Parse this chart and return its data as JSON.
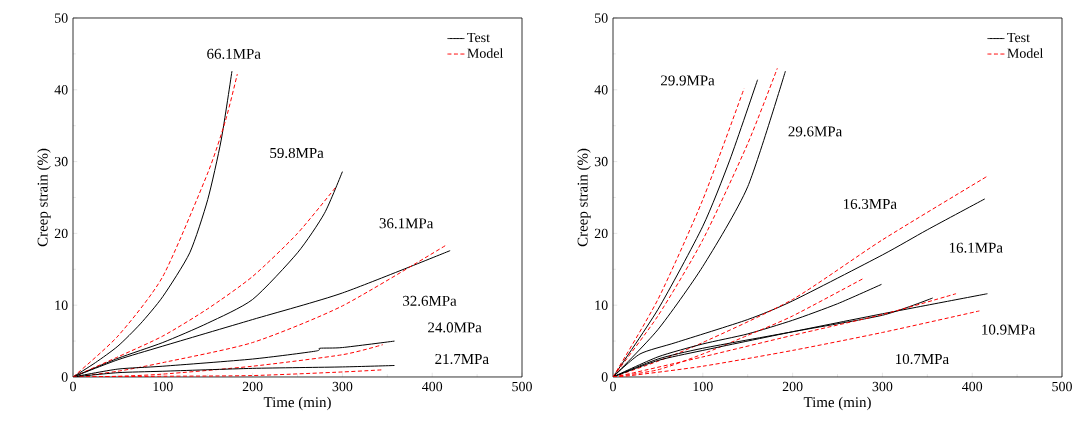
{
  "chart_data": [
    {
      "type": "line",
      "xlabel": "Time (min)",
      "ylabel": "Creep strain (%)",
      "xlim": [
        0,
        500
      ],
      "ylim": [
        0,
        50
      ],
      "xticks": [
        0,
        100,
        200,
        300,
        400,
        500
      ],
      "yticks": [
        0,
        10,
        20,
        30,
        40,
        50
      ],
      "legend": "top right",
      "series": [
        {
          "name": "Test",
          "color": "#000000",
          "line_style": "solid",
          "x": [
            0,
            25,
            50,
            75,
            100,
            130,
            150,
            165,
            177
          ],
          "values": [
            0,
            2.0,
            4.3,
            7.4,
            11.2,
            17.3,
            24.7,
            33,
            42.6
          ]
        },
        {
          "name": "Model",
          "color": "#ff0000",
          "line_style": "dashed",
          "x": [
            0,
            50,
            100,
            150,
            170,
            183
          ],
          "values": [
            0,
            5.7,
            14,
            28.4,
            35.8,
            42.2
          ]
        },
        {
          "color": "#000000",
          "line_style": "solid",
          "x": [
            0,
            50,
            100,
            150,
            200,
            250,
            280,
            300
          ],
          "values": [
            0,
            2.6,
            4.8,
            7.5,
            10.8,
            17.3,
            22.8,
            28.6
          ]
        },
        {
          "color": "#ff0000",
          "line_style": "dashed",
          "x": [
            0,
            50,
            100,
            150,
            200,
            250,
            293
          ],
          "values": [
            0,
            2.8,
            5.7,
            9.5,
            14,
            20,
            26.5
          ]
        },
        {
          "color": "#000000",
          "line_style": "solid",
          "x": [
            0,
            50,
            100,
            200,
            300,
            420
          ],
          "values": [
            0,
            2.4,
            4.3,
            8.0,
            11.7,
            17.6
          ]
        },
        {
          "color": "#ff0000",
          "line_style": "dashed",
          "x": [
            0,
            50,
            100,
            200,
            300,
            416
          ],
          "values": [
            0,
            0.8,
            2.0,
            4.8,
            9.9,
            18.4
          ]
        },
        {
          "color": "#000000",
          "line_style": "solid",
          "x": [
            0,
            50,
            100,
            200,
            270,
            275,
            300,
            358
          ],
          "values": [
            0,
            1.1,
            1.5,
            2.5,
            3.6,
            4.0,
            4.1,
            5.0
          ]
        },
        {
          "color": "#ff0000",
          "line_style": "dashed",
          "x": [
            0,
            50,
            100,
            200,
            300,
            345
          ],
          "values": [
            0,
            0.1,
            0.4,
            1.5,
            3.1,
            4.5
          ]
        },
        {
          "color": "#000000",
          "line_style": "solid",
          "x": [
            0,
            50,
            100,
            200,
            300,
            358
          ],
          "values": [
            0,
            0.6,
            0.8,
            1.2,
            1.4,
            1.6
          ]
        },
        {
          "color": "#ff0000",
          "line_style": "dashed",
          "x": [
            0,
            100,
            200,
            300,
            345
          ],
          "values": [
            0,
            0.1,
            0.2,
            0.7,
            1.0
          ]
        }
      ],
      "annotations": [
        "66.1MPa",
        "59.8MPa",
        "36.1MPa",
        "32.6MPa",
        "24.0MPa",
        "21.7MPa"
      ]
    },
    {
      "type": "line",
      "xlabel": "Time (min)",
      "ylabel": "Creep strain (%)",
      "xlim": [
        0,
        500
      ],
      "ylim": [
        0,
        50
      ],
      "xticks": [
        0,
        100,
        200,
        300,
        400,
        500
      ],
      "yticks": [
        0,
        10,
        20,
        30,
        40,
        50
      ],
      "legend": "top right",
      "series": [
        {
          "name": "Test",
          "color": "#000000",
          "line_style": "solid",
          "x": [
            0,
            50,
            100,
            130,
            161
          ],
          "values": [
            0,
            9.4,
            21,
            30.2,
            41.4
          ]
        },
        {
          "name": "Model",
          "color": "#ff0000",
          "line_style": "dashed",
          "x": [
            0,
            50,
            100,
            146
          ],
          "values": [
            0,
            10.8,
            24.7,
            40.2
          ]
        },
        {
          "color": "#000000",
          "line_style": "solid",
          "x": [
            0,
            50,
            100,
            150,
            192
          ],
          "values": [
            0,
            6.6,
            15.4,
            26.5,
            42.6
          ]
        },
        {
          "color": "#ff0000",
          "line_style": "dashed",
          "x": [
            0,
            50,
            100,
            150,
            183
          ],
          "values": [
            0,
            8.5,
            19.1,
            32.5,
            43
          ]
        },
        {
          "color": "#000000",
          "line_style": "solid",
          "x": [
            0,
            30,
            70,
            150,
            200,
            300,
            350,
            414
          ],
          "values": [
            0,
            3.2,
            4.8,
            8.0,
            10.6,
            17,
            20.5,
            24.8
          ]
        },
        {
          "color": "#ff0000",
          "line_style": "dashed",
          "x": [
            0,
            50,
            100,
            200,
            300,
            416
          ],
          "values": [
            0,
            2.2,
            4.8,
            10.8,
            19.1,
            27.9
          ]
        },
        {
          "color": "#000000",
          "line_style": "solid",
          "x": [
            0,
            50,
            100,
            150,
            200,
            250,
            299
          ],
          "values": [
            0,
            2.8,
            4.6,
            6.0,
            7.9,
            10.2,
            12.9
          ]
        },
        {
          "color": "#ff0000",
          "line_style": "dashed",
          "x": [
            0,
            50,
            100,
            150,
            200,
            280
          ],
          "values": [
            0,
            1.0,
            3.2,
            5.8,
            8.5,
            13.8
          ]
        },
        {
          "color": "#000000",
          "line_style": "solid",
          "x": [
            0,
            50,
            100,
            200,
            300,
            356
          ],
          "values": [
            0,
            2.5,
            4.0,
            6.3,
            8.6,
            11.0
          ]
        },
        {
          "color": "#000000",
          "line_style": "solid",
          "x": [
            0,
            50,
            100,
            200,
            300,
            417
          ],
          "values": [
            0,
            2.3,
            3.7,
            6.3,
            8.8,
            11.6
          ]
        },
        {
          "color": "#ff0000",
          "line_style": "dashed",
          "x": [
            0,
            20,
            100,
            200,
            300,
            382
          ],
          "values": [
            0,
            0.5,
            2.8,
            5.8,
            8.7,
            11.6
          ]
        },
        {
          "color": "#ff0000",
          "line_style": "dashed",
          "x": [
            0,
            20,
            100,
            200,
            300,
            408
          ],
          "values": [
            0,
            0.2,
            1.5,
            3.7,
            6.2,
            9.2
          ]
        }
      ],
      "annotations": [
        "29.9MPa",
        "29.6MPa",
        "16.3MPa",
        "16.1MPa",
        "10.9MPa",
        "10.7MPa"
      ]
    }
  ]
}
